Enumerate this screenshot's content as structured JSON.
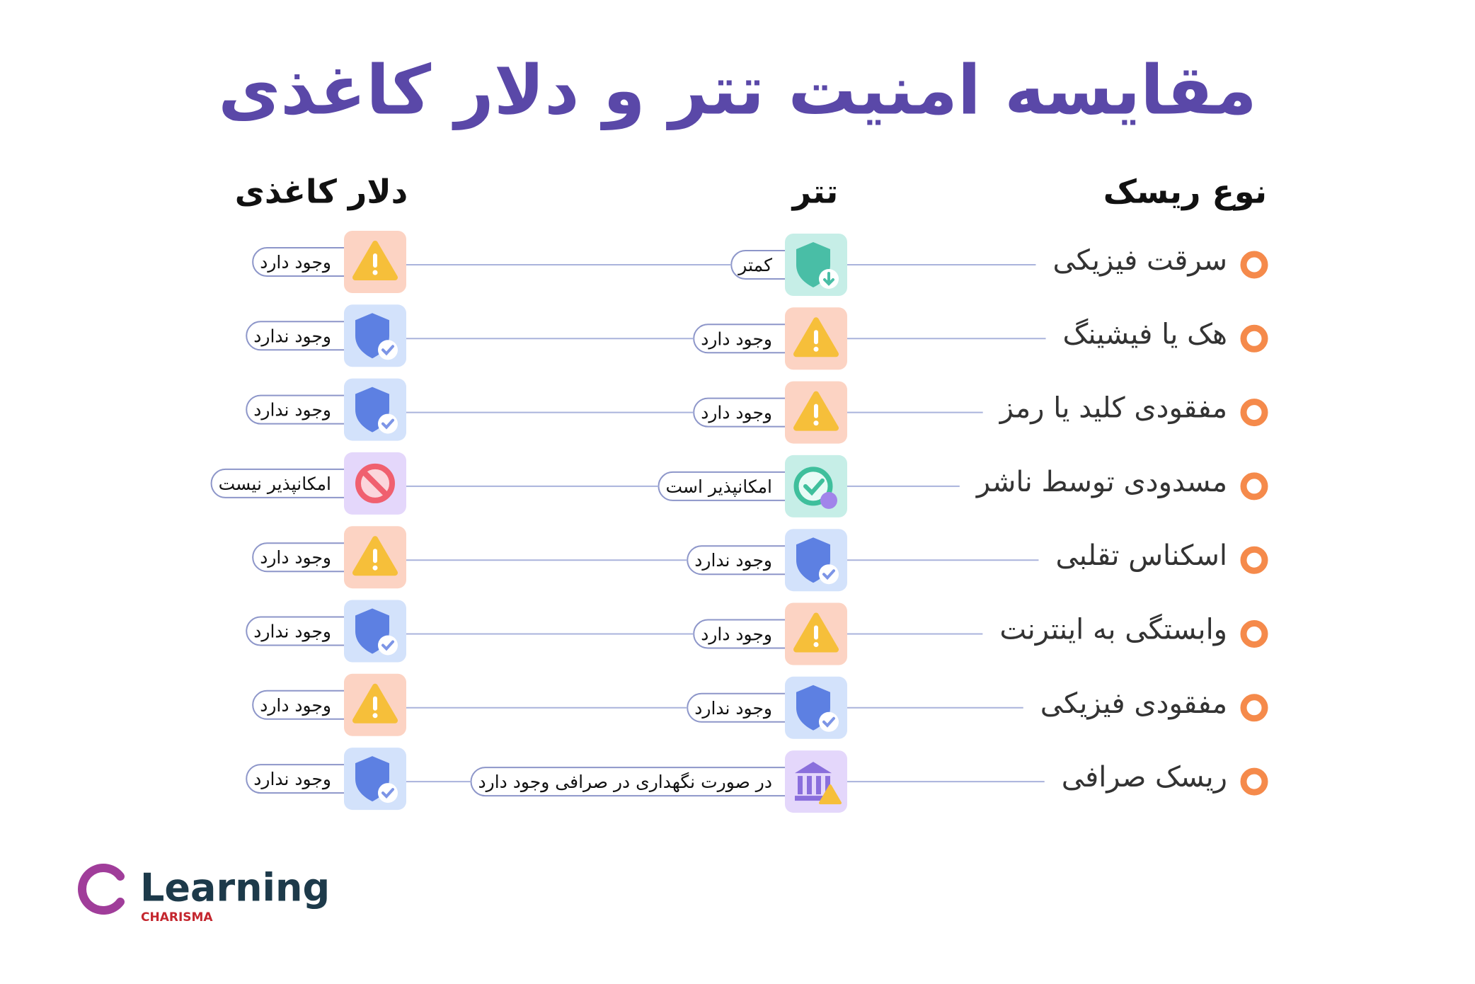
{
  "header": {
    "title": "مقایسه امنیت تتر و دلار کاغذی"
  },
  "columns": [
    "نوع ریسک",
    "تتر",
    "دلار کاغذی"
  ],
  "rows": [
    {
      "risk": "سرقت فیزیکی",
      "tether": "کمتر",
      "dollar": "وجود دارد"
    },
    {
      "risk": "هک یا فیشینگ",
      "tether": "وجود دارد",
      "dollar": "وجود ندارد"
    },
    {
      "risk": "مفقودی کلید یا رمز",
      "tether": "وجود دارد",
      "dollar": "وجود ندارد"
    },
    {
      "risk": "مسدودی توسط ناشر",
      "tether": "امکانپذیر است",
      "dollar": "امکانپذیر نیست"
    },
    {
      "risk": "اسکناس تقلبی",
      "tether": "وجود ندارد",
      "dollar": "وجود دارد"
    },
    {
      "risk": "وابستگی به اینترنت",
      "tether": "وجود دارد",
      "dollar": "وجود ندارد"
    },
    {
      "risk": "مفقودی فیزیکی",
      "tether": "وجود ندارد",
      "dollar": "وجود دارد"
    },
    {
      "risk": "ریسک صرافی",
      "tether": "در صورت نگهداری در صرافی وجود دارد",
      "dollar": "وجود ندارد"
    }
  ],
  "logo": {
    "name": "Learning",
    "brand": "CHARISMA"
  }
}
